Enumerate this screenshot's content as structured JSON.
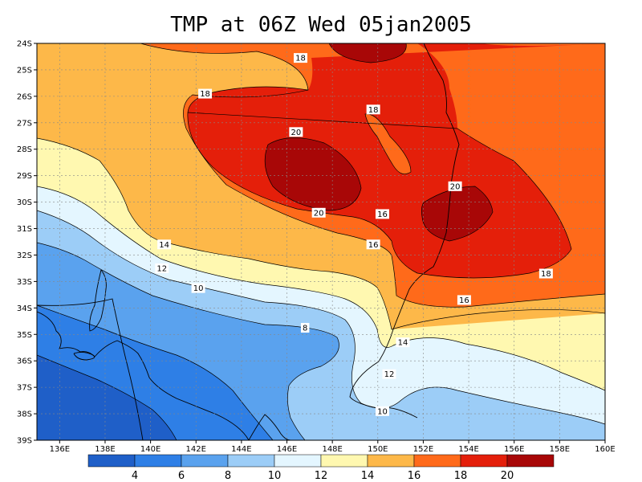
{
  "title": "TMP at 06Z Wed 05jan2005",
  "colors": {
    "c4": "#1f5fc8",
    "c6": "#2e7fe6",
    "c8": "#5aa2ee",
    "c10": "#9ccdf7",
    "c12": "#e4f6ff",
    "c14": "#fff8b0",
    "c16": "#fdb849",
    "c18": "#ff6a1a",
    "c20": "#e41f0a",
    "c22": "#a80707"
  },
  "chart_data": {
    "type": "heatmap",
    "variable": "TMP",
    "xlim": [
      135,
      160
    ],
    "ylim": [
      -39,
      -24
    ],
    "x_ticks": [
      "136E",
      "138E",
      "140E",
      "142E",
      "144E",
      "146E",
      "148E",
      "150E",
      "152E",
      "154E",
      "156E",
      "158E",
      "160E"
    ],
    "y_ticks": [
      "24S",
      "25S",
      "26S",
      "27S",
      "28S",
      "29S",
      "30S",
      "31S",
      "32S",
      "33S",
      "34S",
      "35S",
      "36S",
      "37S",
      "38S",
      "39S"
    ],
    "contour_levels": [
      4,
      6,
      8,
      10,
      12,
      14,
      16,
      18,
      20
    ],
    "colorbar_labels": [
      "4",
      "6",
      "8",
      "10",
      "12",
      "14",
      "16",
      "18",
      "20"
    ],
    "contour_labels": [
      {
        "text": "18",
        "lon": 146.6,
        "lat": -24.55
      },
      {
        "text": "18",
        "lon": 142.4,
        "lat": -25.9
      },
      {
        "text": "18",
        "lon": 149.8,
        "lat": -26.5
      },
      {
        "text": "20",
        "lon": 146.4,
        "lat": -27.35
      },
      {
        "text": "20",
        "lon": 153.4,
        "lat": -29.4
      },
      {
        "text": "20",
        "lon": 147.4,
        "lat": -30.4
      },
      {
        "text": "16",
        "lon": 150.2,
        "lat": -30.45
      },
      {
        "text": "16",
        "lon": 149.8,
        "lat": -31.6
      },
      {
        "text": "14",
        "lon": 140.6,
        "lat": -31.6
      },
      {
        "text": "18",
        "lon": 157.4,
        "lat": -32.7
      },
      {
        "text": "12",
        "lon": 140.5,
        "lat": -32.5
      },
      {
        "text": "10",
        "lon": 142.1,
        "lat": -33.25
      },
      {
        "text": "16",
        "lon": 153.8,
        "lat": -33.7
      },
      {
        "text": "8",
        "lon": 146.8,
        "lat": -34.75
      },
      {
        "text": "14",
        "lon": 151.1,
        "lat": -35.3
      },
      {
        "text": "12",
        "lon": 150.5,
        "lat": -36.5
      },
      {
        "text": "10",
        "lon": 150.2,
        "lat": -37.9
      }
    ]
  }
}
